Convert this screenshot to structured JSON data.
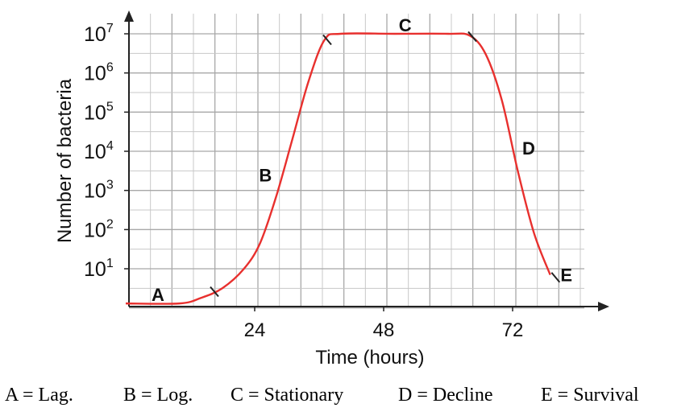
{
  "chart_data": {
    "type": "line",
    "title": "",
    "xlabel": "Time (hours)",
    "ylabel": "Number of bacteria",
    "y_scale": "log10",
    "x_ticks": [
      "24",
      "48",
      "72"
    ],
    "x_tick_values": [
      24,
      48,
      72
    ],
    "y_ticks": [
      {
        "base": "10",
        "exp": "1",
        "value": 10
      },
      {
        "base": "10",
        "exp": "2",
        "value": 100
      },
      {
        "base": "10",
        "exp": "3",
        "value": 1000
      },
      {
        "base": "10",
        "exp": "4",
        "value": 10000
      },
      {
        "base": "10",
        "exp": "5",
        "value": 100000
      },
      {
        "base": "10",
        "exp": "6",
        "value": 1000000
      },
      {
        "base": "10",
        "exp": "7",
        "value": 10000000
      }
    ],
    "xlim": [
      0,
      92
    ],
    "ylim_log10": [
      0,
      7.5
    ],
    "grid": true,
    "line_color": "#e8302e",
    "series": [
      {
        "points": [
          [
            0,
            1.3
          ],
          [
            10,
            1.3
          ],
          [
            14,
            1.8
          ],
          [
            18,
            3.2
          ],
          [
            22,
            10
          ],
          [
            25,
            45
          ],
          [
            28,
            700
          ],
          [
            31,
            20000
          ],
          [
            34,
            600000
          ],
          [
            37,
            7000000
          ],
          [
            40,
            10000000
          ],
          [
            50,
            10000000
          ],
          [
            60,
            10000000
          ],
          [
            64,
            9000000
          ],
          [
            67,
            3000000
          ],
          [
            70,
            200000
          ],
          [
            73,
            3000
          ],
          [
            76,
            80
          ],
          [
            79,
            7
          ]
        ]
      }
    ],
    "phases": [
      {
        "letter": "A",
        "x": 6,
        "y": 2.2
      },
      {
        "letter": "B",
        "x": 26,
        "y": 2500
      },
      {
        "letter": "C",
        "x": 52,
        "y": 17000000
      },
      {
        "letter": "D",
        "x": 75,
        "y": 12000
      },
      {
        "letter": "E",
        "x": 82,
        "y": 7
      }
    ],
    "phase_boundaries": [
      {
        "x": 16.5,
        "y": 2.6
      },
      {
        "x": 37.5,
        "y": 7000000
      },
      {
        "x": 64.5,
        "y": 8500000
      },
      {
        "x": 80,
        "y": 6
      }
    ]
  },
  "legend": {
    "a": "A =  Lag.",
    "b": "B = Log.",
    "c": "C = Stationary",
    "d": "D = Decline",
    "e": "E =  Survival"
  }
}
